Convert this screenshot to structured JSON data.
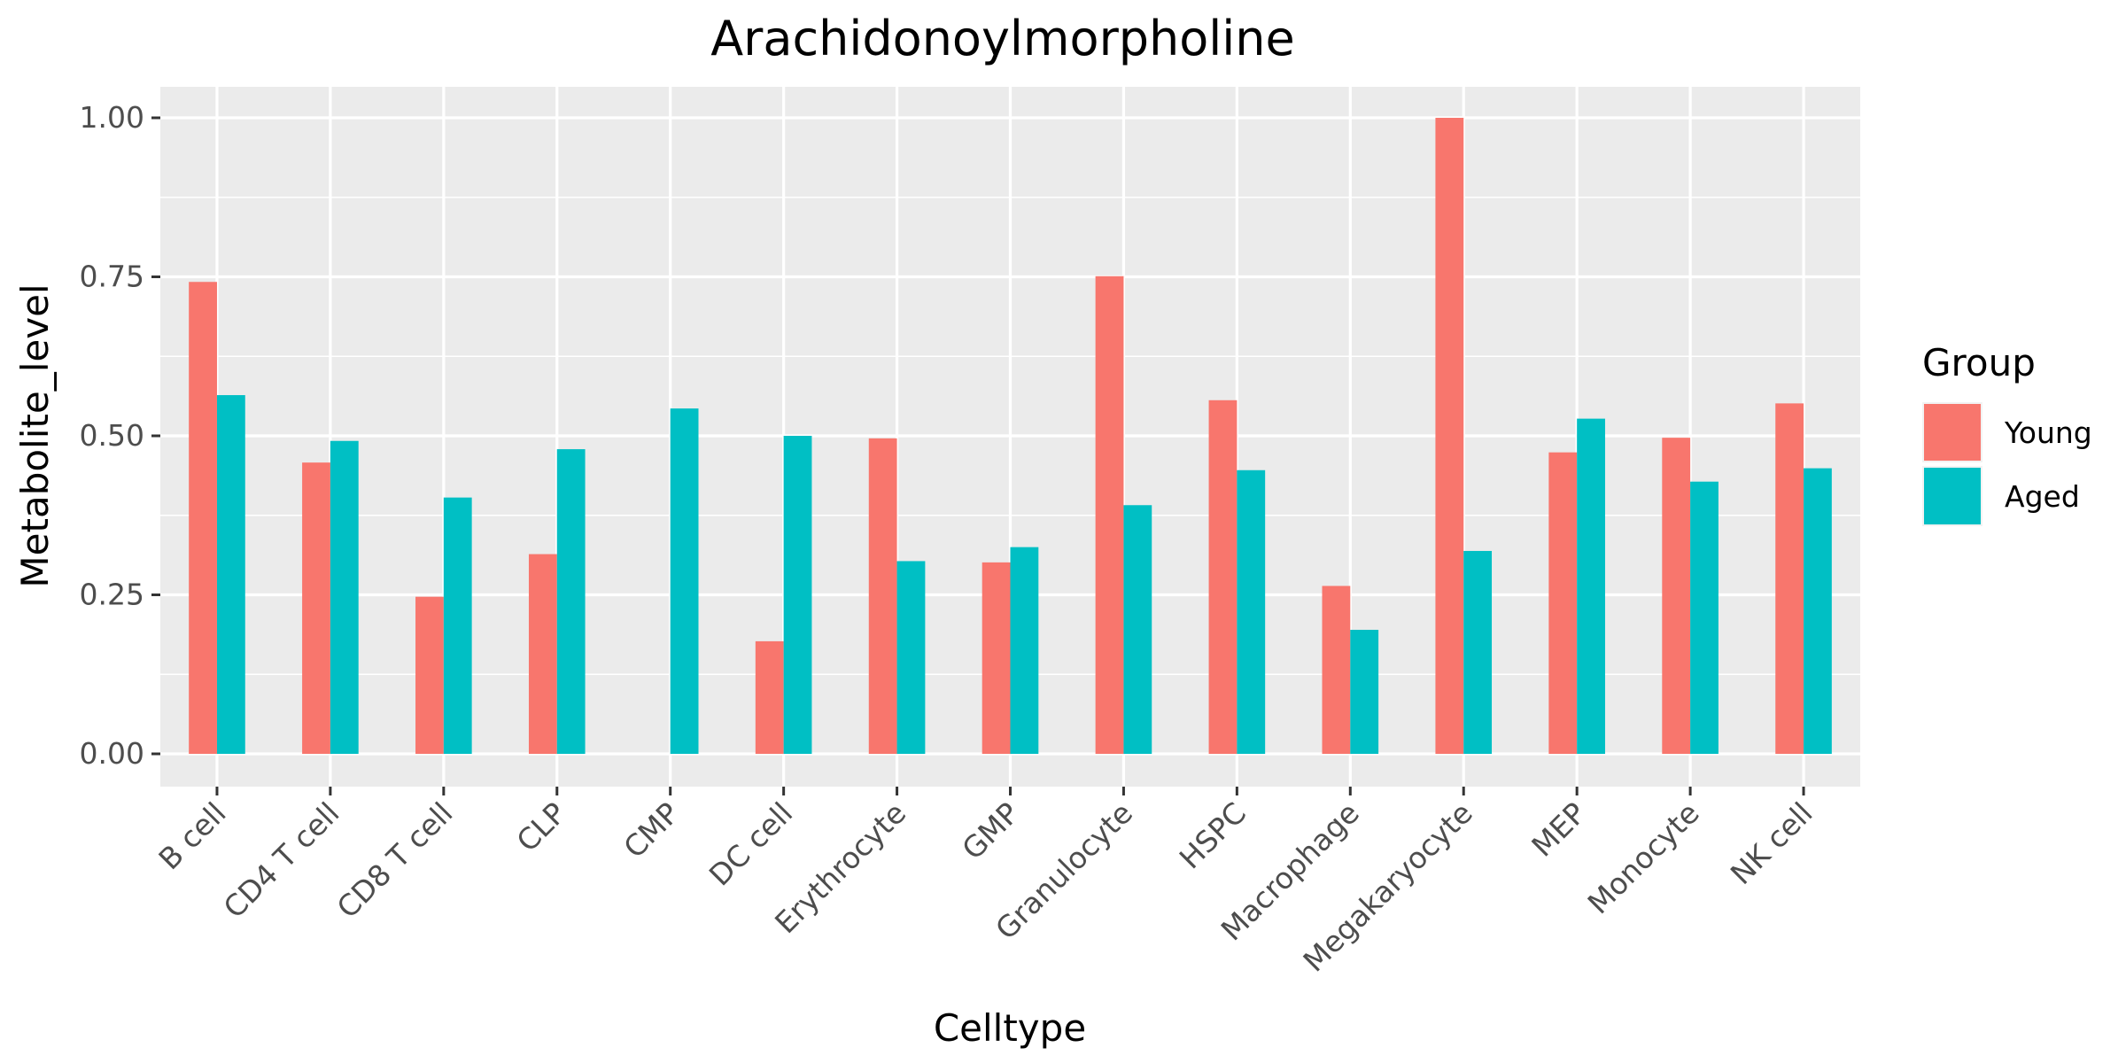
{
  "chart_data": {
    "type": "bar",
    "title": "Arachidonoylmorpholine",
    "xlabel": "Celltype",
    "ylabel": "Metabolite_level",
    "ylim": [
      -0.05,
      1.05
    ],
    "yticks": [
      0,
      0.25,
      0.5,
      0.75,
      1
    ],
    "ytick_labels": [
      "0.00",
      "0.25",
      "0.50",
      "0.75",
      "1.00"
    ],
    "grid": true,
    "legend_position": "right",
    "legend_title": "Group",
    "categories": [
      "B cell",
      "CD4 T cell",
      "CD8 T cell",
      "CLP",
      "CMP",
      "DC cell",
      "Erythrocyte",
      "GMP",
      "Granulocyte",
      "HSPC",
      "Macrophage",
      "Megakaryocyte",
      "MEP",
      "Monocyte",
      "NK cell"
    ],
    "series": [
      {
        "name": "Young",
        "color": "#F8766D",
        "values": [
          0.742,
          0.458,
          0.247,
          0.314,
          null,
          0.177,
          0.496,
          0.301,
          0.751,
          0.556,
          0.264,
          1.0,
          0.474,
          0.497,
          0.551
        ]
      },
      {
        "name": "Aged",
        "color": "#00BFC4",
        "values": [
          0.564,
          0.492,
          0.403,
          0.479,
          0.543,
          0.5,
          0.303,
          0.325,
          0.391,
          0.446,
          0.195,
          0.319,
          0.527,
          0.428,
          0.449
        ]
      }
    ]
  }
}
